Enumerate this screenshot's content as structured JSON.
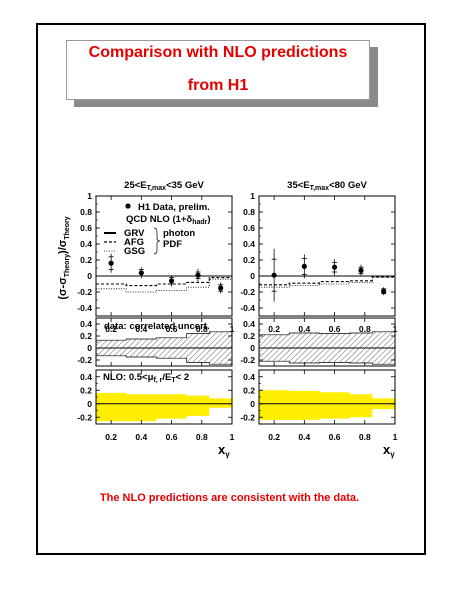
{
  "slide": {
    "title_line1": "Comparison with NLO predictions",
    "title_line2": "from H1",
    "footer": "The NLO predictions are consistent with the data.",
    "accent_color": "#e60000"
  },
  "figure": {
    "ylabel": "(σ-σ",
    "ylabel_sub1": "Theory",
    "ylabel_mid": ")/σ",
    "ylabel_sub2": "Theory",
    "xlabel": "x",
    "xlabel_sub": "γ",
    "legend": {
      "data_label": "H1 Data, prelim.",
      "qcd_label": "QCD NLO (1+δ",
      "qcd_sub": "hadr",
      "qcd_close": ")",
      "grv": "GRV",
      "afg": "AFG",
      "gsg": "GSG",
      "photon": "photon",
      "pdf": "PDF"
    },
    "band_label": "data: correlated uncert.",
    "scale_label_pre": "NLO: 0.5<",
    "scale_mu": "μ",
    "scale_sub": "f, r",
    "scale_mid": "/E",
    "scale_sub2": "T",
    "scale_post": "< 2",
    "yellow_color": "#ffee00"
  },
  "chart_data": [
    {
      "type": "scatter",
      "panel": "left-top",
      "title_pre": "25<E",
      "title_sub": "T,max",
      "title_post": "<35 GeV",
      "xlim": [
        0.1,
        1.0
      ],
      "ylim": [
        -0.5,
        1.0
      ],
      "yticks": [
        -0.4,
        -0.2,
        0,
        0.2,
        0.4,
        0.6,
        0.8,
        1
      ],
      "xticks": [
        0.2,
        0.4,
        0.6,
        0.8,
        1
      ],
      "x_bins": [
        0.1,
        0.3,
        0.5,
        0.7,
        0.85,
        1.0
      ],
      "points": [
        {
          "x": 0.2,
          "y": 0.16,
          "err_stat": 0.08,
          "err_tot": 0.12
        },
        {
          "x": 0.4,
          "y": 0.04,
          "err_stat": 0.04,
          "err_tot": 0.07
        },
        {
          "x": 0.6,
          "y": -0.06,
          "err_stat": 0.04,
          "err_tot": 0.07
        },
        {
          "x": 0.775,
          "y": 0.01,
          "err_stat": 0.04,
          "err_tot": 0.08
        },
        {
          "x": 0.925,
          "y": -0.15,
          "err_stat": 0.04,
          "err_tot": 0.07
        }
      ],
      "series": [
        {
          "name": "AFG",
          "values": [
            -0.1,
            -0.12,
            -0.1,
            -0.08,
            -0.02
          ]
        },
        {
          "name": "GSG",
          "values": [
            -0.16,
            -0.2,
            -0.18,
            -0.14,
            -0.04
          ]
        }
      ]
    },
    {
      "type": "scatter",
      "panel": "right-top",
      "title_pre": "35<E",
      "title_sub": "T,max",
      "title_post": "<80 GeV",
      "xlim": [
        0.1,
        1.0
      ],
      "ylim": [
        -0.5,
        1.0
      ],
      "yticks": [
        -0.4,
        -0.2,
        0,
        0.2,
        0.4,
        0.6,
        0.8,
        1
      ],
      "xticks": [
        0.2,
        0.4,
        0.6,
        0.8,
        1
      ],
      "x_bins": [
        0.1,
        0.3,
        0.5,
        0.7,
        0.85,
        1.0
      ],
      "points": [
        {
          "x": 0.2,
          "y": 0.01,
          "err_stat": 0.2,
          "err_tot": 0.33
        },
        {
          "x": 0.4,
          "y": 0.12,
          "err_stat": 0.1,
          "err_tot": 0.15
        },
        {
          "x": 0.6,
          "y": 0.11,
          "err_stat": 0.06,
          "err_tot": 0.1
        },
        {
          "x": 0.775,
          "y": 0.07,
          "err_stat": 0.04,
          "err_tot": 0.07
        },
        {
          "x": 0.925,
          "y": -0.19,
          "err_stat": 0.03,
          "err_tot": 0.05
        }
      ],
      "series": [
        {
          "name": "AFG",
          "values": [
            -0.11,
            -0.09,
            -0.07,
            -0.06,
            -0.01
          ]
        },
        {
          "name": "GSG",
          "values": [
            -0.14,
            -0.12,
            -0.1,
            -0.08,
            -0.02
          ]
        }
      ]
    },
    {
      "type": "area",
      "panel": "left-middle",
      "ylim": [
        -0.3,
        0.5
      ],
      "yticks": [
        -0.2,
        0,
        0.2,
        0.4
      ],
      "x_bins": [
        0.1,
        0.3,
        0.5,
        0.7,
        0.85,
        1.0
      ],
      "band_upper": [
        0.13,
        0.15,
        0.17,
        0.24,
        0.27
      ],
      "band_lower": [
        -0.13,
        -0.15,
        -0.17,
        -0.24,
        -0.27
      ]
    },
    {
      "type": "area",
      "panel": "right-middle",
      "ylim": [
        -0.3,
        0.5
      ],
      "yticks": [
        -0.2,
        0,
        0.2,
        0.4
      ],
      "x_bins": [
        0.1,
        0.3,
        0.5,
        0.7,
        0.85,
        1.0
      ],
      "band_upper": [
        0.22,
        0.25,
        0.24,
        0.25,
        0.27
      ],
      "band_lower": [
        -0.22,
        -0.25,
        -0.24,
        -0.25,
        -0.27
      ]
    },
    {
      "type": "area",
      "panel": "left-bottom",
      "ylim": [
        -0.3,
        0.5
      ],
      "yticks": [
        -0.2,
        0,
        0.2,
        0.4
      ],
      "xticks": [
        0.2,
        0.4,
        0.6,
        0.8,
        1
      ],
      "x_bins": [
        0.1,
        0.3,
        0.5,
        0.7,
        0.85,
        1.0
      ],
      "band_upper": [
        0.16,
        0.14,
        0.14,
        0.12,
        0.08
      ],
      "band_lower": [
        -0.26,
        -0.26,
        -0.22,
        -0.18,
        -0.06
      ]
    },
    {
      "type": "area",
      "panel": "right-bottom",
      "ylim": [
        -0.3,
        0.5
      ],
      "yticks": [
        -0.2,
        0,
        0.2,
        0.4
      ],
      "xticks": [
        0.2,
        0.4,
        0.6,
        0.8,
        1
      ],
      "x_bins": [
        0.1,
        0.3,
        0.5,
        0.7,
        0.85,
        1.0
      ],
      "band_upper": [
        0.2,
        0.19,
        0.17,
        0.14,
        0.08
      ],
      "band_lower": [
        -0.24,
        -0.24,
        -0.22,
        -0.2,
        -0.08
      ]
    }
  ]
}
